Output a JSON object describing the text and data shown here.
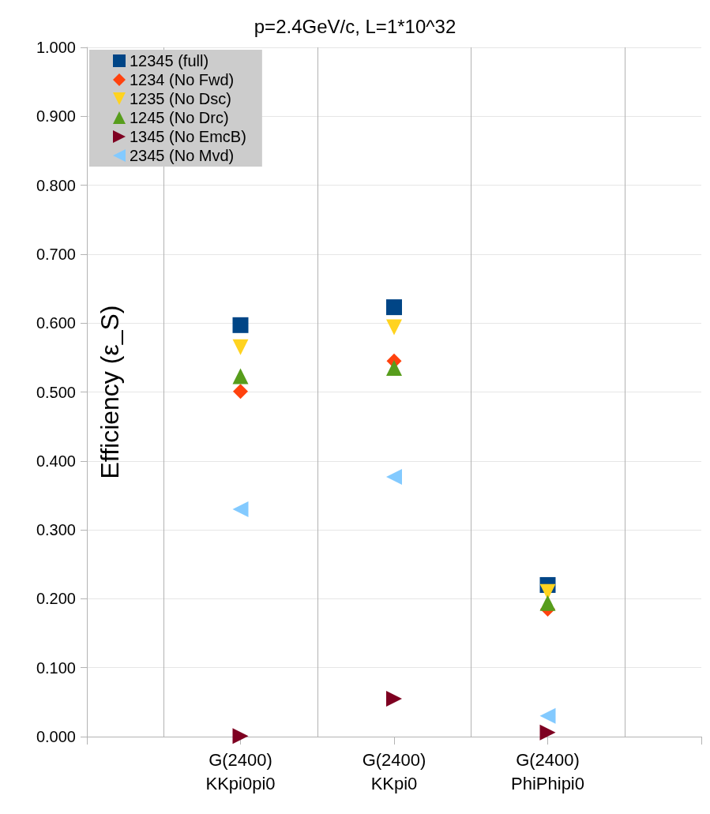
{
  "chart_data": {
    "type": "scatter",
    "title": "p=2.4GeV/c, L=1*10^32",
    "ylabel": "Efficiency (ε_S)",
    "categories": [
      null,
      "G(2400)\nKKpi0pi0",
      "G(2400)\nKKpi0",
      "G(2400)\nPhiPhipi0",
      null
    ],
    "series": [
      {
        "name": "12345 (full)",
        "color": "#004586",
        "marker": "square",
        "values": [
          null,
          0.597,
          0.623,
          0.22,
          null
        ]
      },
      {
        "name": "1234 (No Fwd)",
        "color": "#ff420e",
        "marker": "diamond",
        "values": [
          null,
          0.501,
          0.545,
          0.185,
          null
        ]
      },
      {
        "name": "1235 (No Dsc)",
        "color": "#ffd320",
        "marker": "triangle-down",
        "values": [
          null,
          0.565,
          0.594,
          0.21,
          null
        ]
      },
      {
        "name": "1245 (No Drc)",
        "color": "#579d1c",
        "marker": "triangle",
        "values": [
          null,
          0.523,
          0.535,
          0.194,
          null
        ]
      },
      {
        "name": "1345 (No EmcB)",
        "color": "#7e0021",
        "marker": "triangle-right",
        "values": [
          null,
          0.001,
          0.055,
          0.006,
          null
        ]
      },
      {
        "name": "2345 (No Mvd)",
        "color": "#83caff",
        "marker": "triangle-left",
        "values": [
          null,
          0.33,
          0.377,
          0.03,
          null
        ]
      }
    ],
    "ylim": [
      0,
      1
    ],
    "yticks": [
      {
        "value": 0,
        "label": "0.000"
      },
      {
        "value": 0.1,
        "label": "0.100"
      },
      {
        "value": 0.2,
        "label": "0.200"
      },
      {
        "value": 0.3,
        "label": "0.300"
      },
      {
        "value": 0.4,
        "label": "0.400"
      },
      {
        "value": 0.5,
        "label": "0.500"
      },
      {
        "value": 0.6,
        "label": "0.600"
      },
      {
        "value": 0.7,
        "label": "0.700"
      },
      {
        "value": 0.8,
        "label": "0.800"
      },
      {
        "value": 0.9,
        "label": "0.900"
      },
      {
        "value": 1,
        "label": "1.000"
      }
    ],
    "grid": true,
    "legend": "top left"
  }
}
